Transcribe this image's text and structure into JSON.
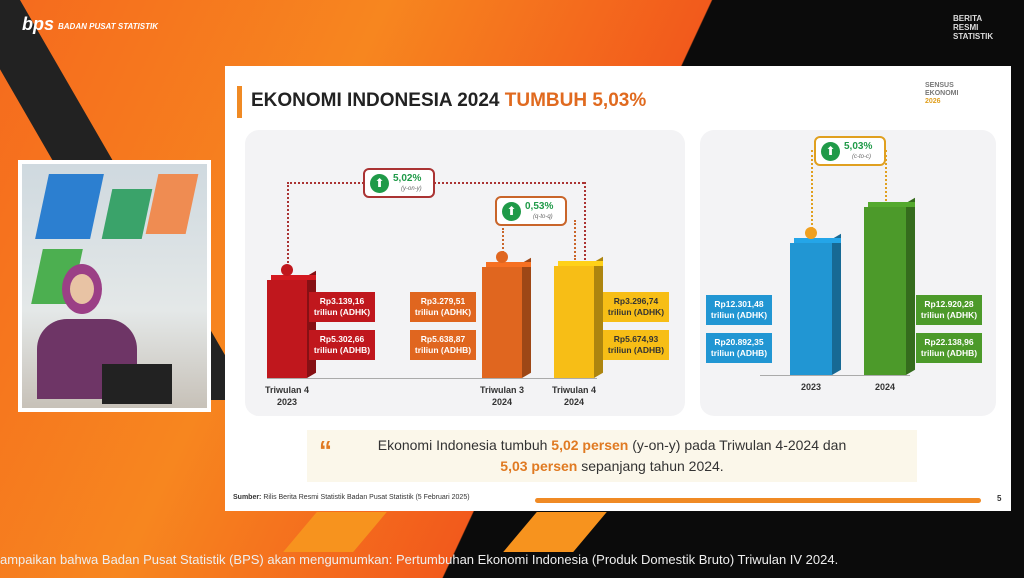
{
  "broadcast": {
    "org": "BADAN PUSAT STATISTIK",
    "brand": [
      "BERITA",
      "RESMI",
      "STATISTIK"
    ],
    "ticker": "ampaikan bahwa Badan Pusat Statistik (BPS) akan mengumumkan: Pertumbuhan Ekonomi Indonesia (Produk Domestik Bruto) Triwulan IV 2024."
  },
  "slide": {
    "title": "EKONOMI INDONESIA 2024",
    "title_accent": "TUMBUH 5,03%",
    "logo_text": [
      "SENSUS",
      "EKONOMI",
      "2026"
    ],
    "quote_part1": "Ekonomi Indonesia tumbuh ",
    "quote_hl1": "5,02 persen",
    "quote_part2": " (y-on-y) pada Triwulan 4-2024 dan ",
    "quote_hl2": "5,03 persen",
    "quote_part3": " sepanjang tahun 2024.",
    "source_label": "Sumber:",
    "source": " Rilis Berita Resmi Statistik Badan Pusat Statistik (5 Februari 2025)",
    "page": "5"
  },
  "chart_data": [
    {
      "type": "bar",
      "unit": "triliun",
      "categories": [
        "Triwulan 4\n2023",
        "Triwulan 3\n2024",
        "Triwulan 4\n2024"
      ],
      "adhk": [
        "Rp3.139,16 triliun (ADHK)",
        "Rp3.279,51 triliun (ADHK)",
        "Rp3.296,74 triliun (ADHK)"
      ],
      "adhb": [
        "Rp5.302,66 triliun (ADHB)",
        "Rp5.638,87 triliun (ADHB)",
        "Rp5.674,93 triliun (ADHB)"
      ],
      "values_adhk": [
        3139.16,
        3279.51,
        3296.74
      ],
      "values_adhb": [
        5302.66,
        5638.87,
        5674.93
      ],
      "colors": [
        "#c0171d",
        "#e0661f",
        "#f7be16"
      ],
      "growth": [
        {
          "value": "5,02%",
          "basis": "(y-on-y)"
        },
        {
          "value": "0,53%",
          "basis": "(q-to-q)"
        }
      ]
    },
    {
      "type": "bar",
      "unit": "triliun",
      "categories": [
        "2023",
        "2024"
      ],
      "adhk": [
        "Rp12.301,48 triliun (ADHK)",
        "Rp12.920,28 triliun (ADHK)"
      ],
      "adhb": [
        "Rp20.892,35 triliun (ADHB)",
        "Rp22.138,96 triliun (ADHB)"
      ],
      "values_adhk": [
        12301.48,
        12920.28
      ],
      "values_adhb": [
        20892.35,
        22138.96
      ],
      "colors": [
        "#2196d3",
        "#4c9a2a"
      ],
      "growth": [
        {
          "value": "5,03%",
          "basis": "(c-to-c)"
        }
      ]
    }
  ]
}
